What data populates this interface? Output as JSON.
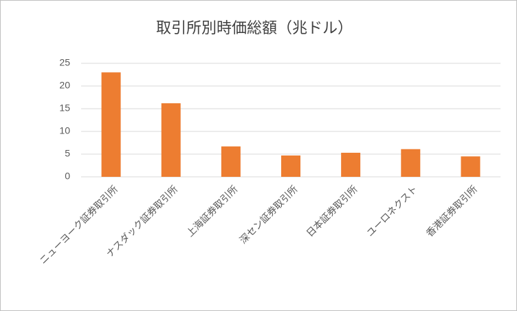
{
  "chart_data": {
    "type": "bar",
    "title": "取引所別時価総額（兆ドル）",
    "categories": [
      "ニューヨーク証券取引所",
      "ナスダック証券取引所",
      "上海証券取引所",
      "深セン証券取引所",
      "日本証券取引所",
      "ユーロネクスト",
      "香港証券取引所"
    ],
    "values": [
      23.0,
      16.2,
      6.7,
      4.7,
      5.3,
      6.1,
      4.5
    ],
    "color": "#ed7d31",
    "ylim": [
      0,
      25
    ],
    "yticks": [
      0,
      5,
      10,
      15,
      20,
      25
    ],
    "grid": true
  }
}
